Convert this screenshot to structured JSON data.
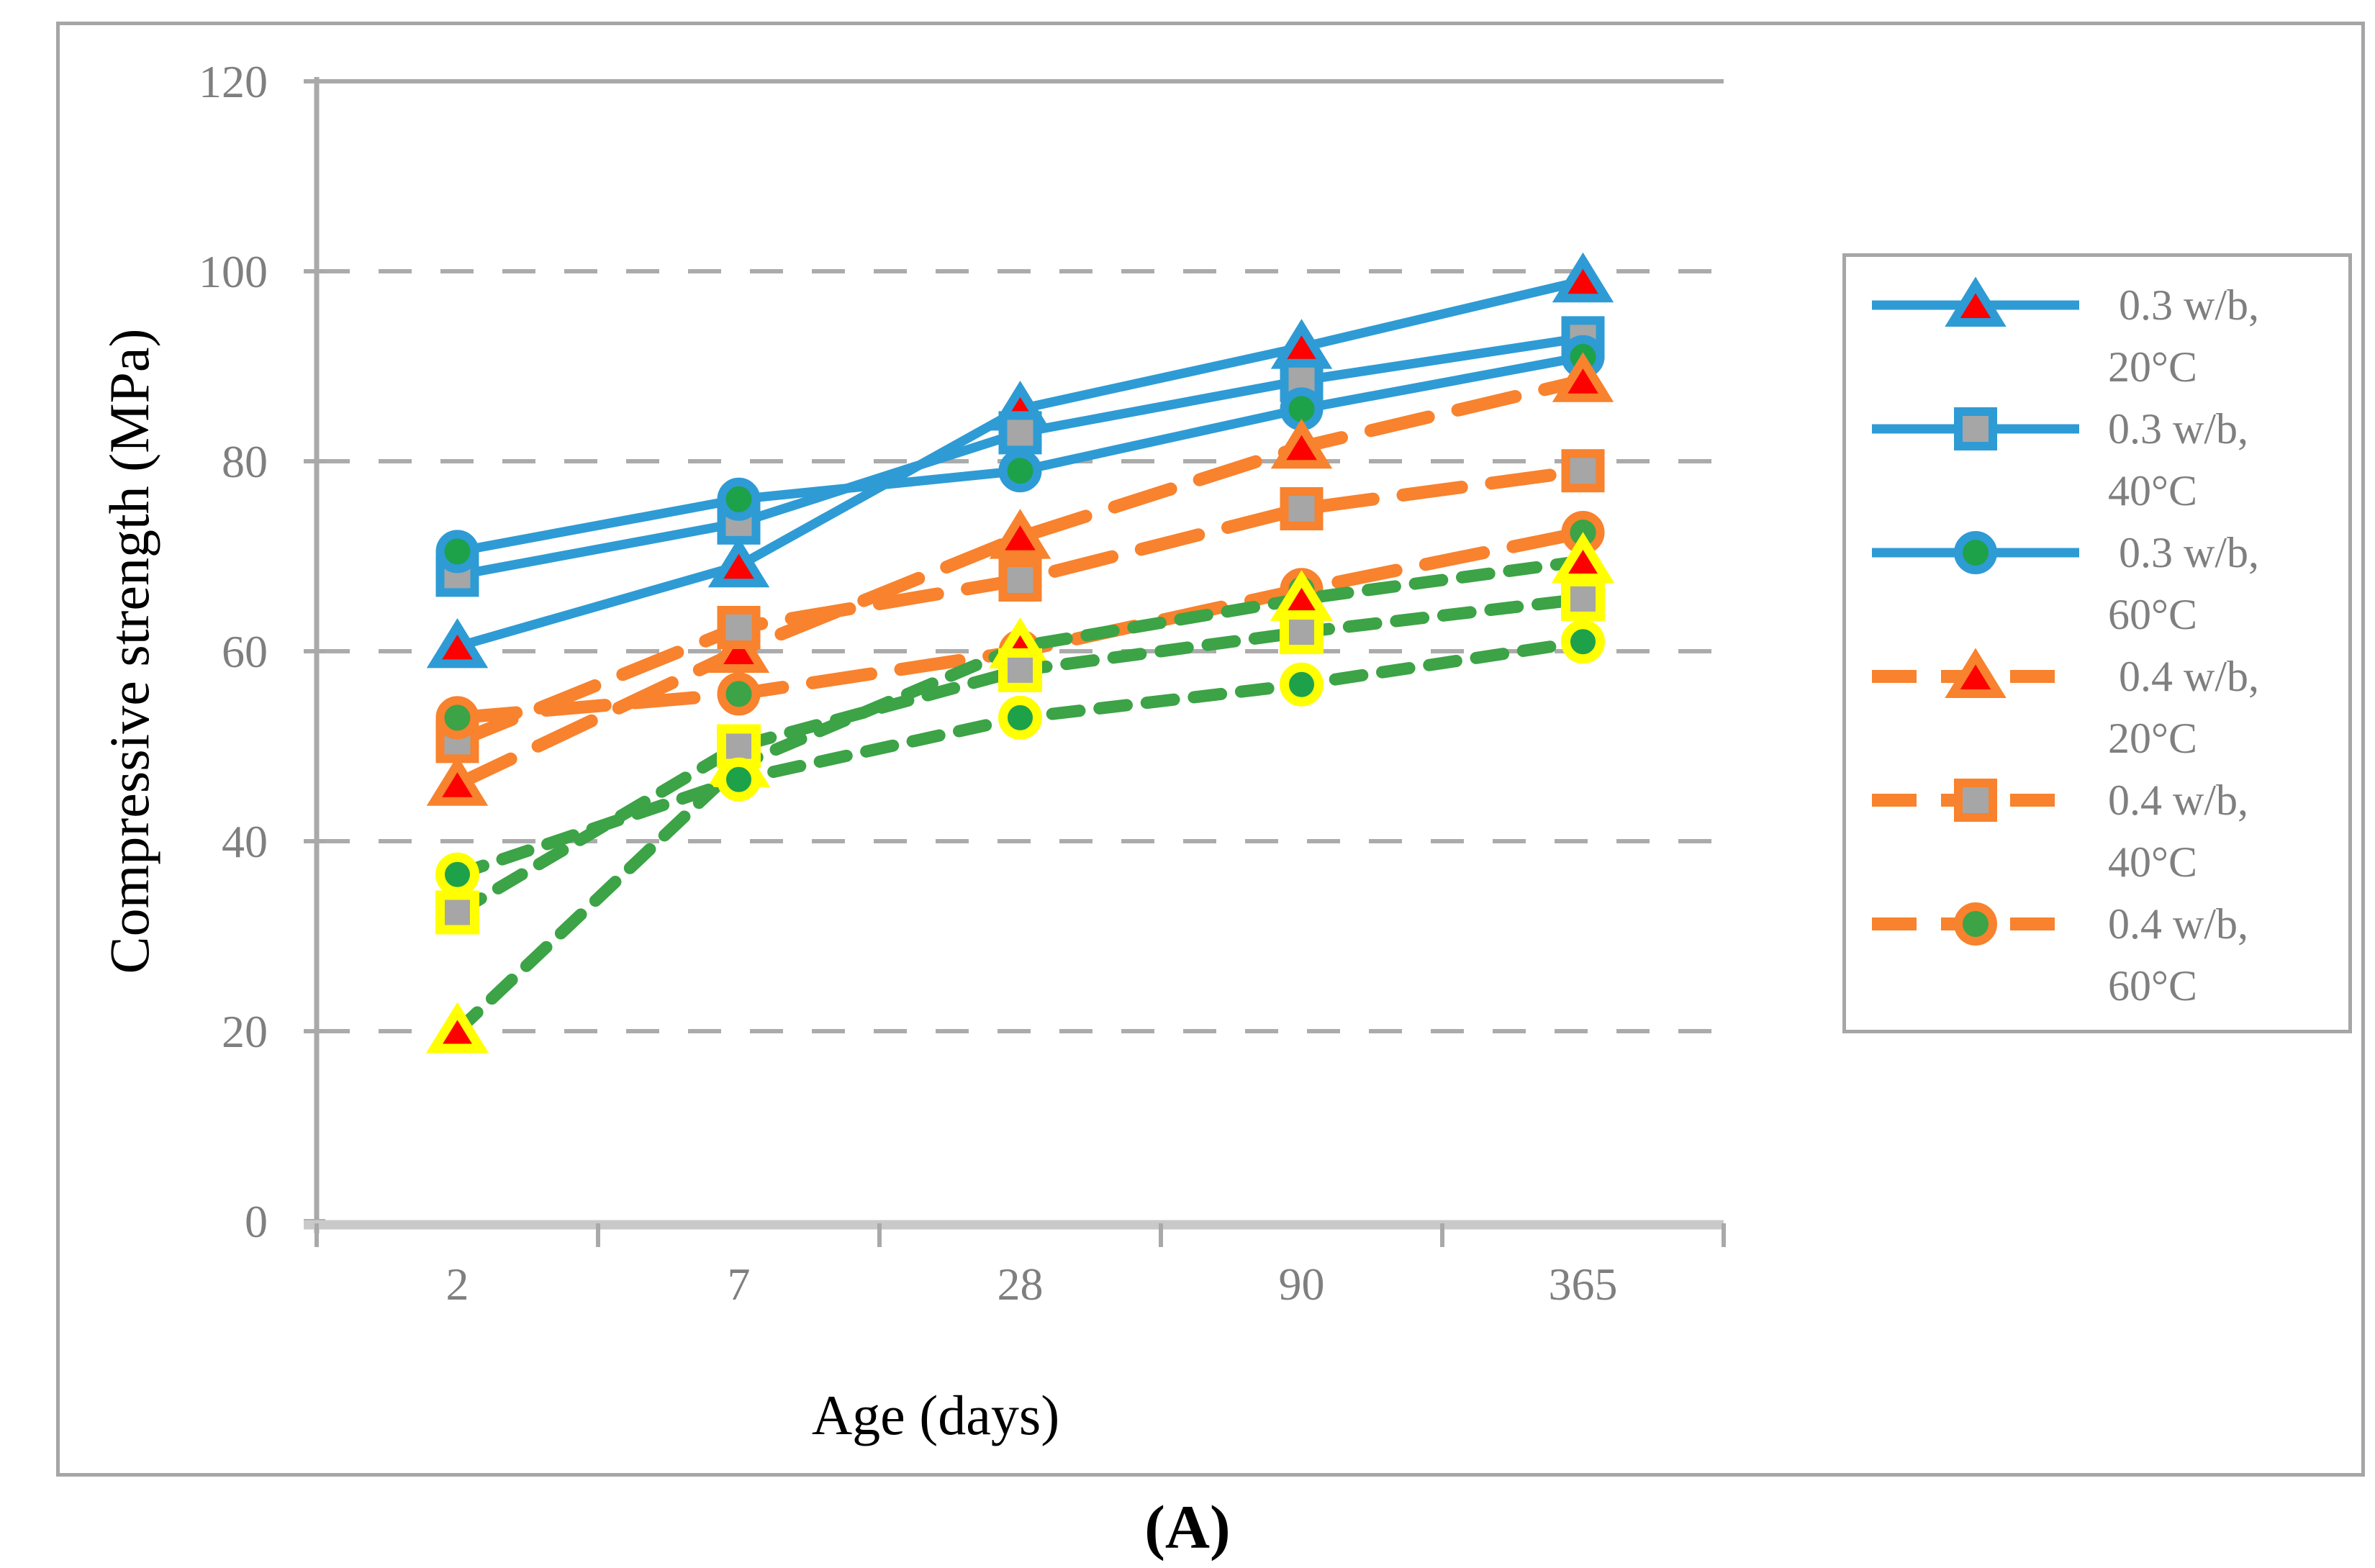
{
  "figure": {
    "caption": "(A)",
    "border_color": "#A6A6A6",
    "background": "#FFFFFF"
  },
  "y_axis": {
    "title": "Compressive strength (MPa)",
    "tick_labels": [
      "0",
      "20",
      "40",
      "60",
      "80",
      "100",
      "120"
    ],
    "min": 0,
    "max": 120,
    "tick_step": 20,
    "tick_text_color": "#7F7F7F"
  },
  "x_axis": {
    "title": "Age (days)",
    "categories": [
      "2",
      "7",
      "28",
      "90",
      "365"
    ],
    "tick_text_color": "#7F7F7F"
  },
  "legend": {
    "text_color": "#7F7F7F",
    "entries": [
      {
        "label": " 0.3 w/b,\n20°C",
        "series_index": 0
      },
      {
        "label": "0.3 w/b,\n40°C",
        "series_index": 1
      },
      {
        "label": " 0.3 w/b,\n60°C",
        "series_index": 2
      },
      {
        "label": " 0.4 w/b,\n20°C",
        "series_index": 3
      },
      {
        "label": "0.4 w/b,\n40°C",
        "series_index": 4
      },
      {
        "label": "0.4 w/b,\n60°C",
        "series_index": 5
      }
    ]
  },
  "chart_data": {
    "type": "line",
    "title": "",
    "xlabel": "Age (days)",
    "ylabel": "Compressive strength (MPa)",
    "x_categories": [
      "2",
      "7",
      "28",
      "90",
      "365"
    ],
    "ylim": [
      0,
      120
    ],
    "grid": {
      "horizontal_dashed_at": [
        20,
        40,
        60,
        80,
        100
      ],
      "color": "#ABABAB",
      "top_solid_at": 120
    },
    "legend_position": "right",
    "series": [
      {
        "id": "s-03wb-20c",
        "name": "0.3 w/b, 20°C",
        "in_legend": true,
        "line_color": "#2E9BD5",
        "dash": "solid",
        "marker": "triangle",
        "marker_fill": "#FE0000",
        "marker_outline": "#2E9BD5",
        "values": [
          60.5,
          69,
          85.5,
          92,
          99
        ]
      },
      {
        "id": "s-03wb-40c",
        "name": "0.3 w/b, 40°C",
        "in_legend": true,
        "line_color": "#2E9BD5",
        "dash": "solid",
        "marker": "square",
        "marker_fill": "#A6A6A6",
        "marker_outline": "#2E9BD5",
        "values": [
          68,
          73.5,
          83,
          88.5,
          93
        ]
      },
      {
        "id": "s-03wb-60c",
        "name": "0.3 w/b, 60°C",
        "in_legend": true,
        "line_color": "#2E9BD5",
        "dash": "solid",
        "marker": "circle",
        "marker_fill": "#1DA24A",
        "marker_outline": "#2E9BD5",
        "values": [
          70.5,
          76,
          79,
          85.5,
          91
        ]
      },
      {
        "id": "s-04wb-20c",
        "name": "0.4 w/b, 20°C",
        "in_legend": true,
        "line_color": "#F8822D",
        "dash": "long-dash",
        "marker": "triangle",
        "marker_fill": "#FE0000",
        "marker_outline": "#F8822D",
        "values": [
          46,
          60,
          72,
          81.5,
          88.5
        ]
      },
      {
        "id": "s-04wb-40c",
        "name": "0.4 w/b, 40°C",
        "in_legend": true,
        "line_color": "#F8822D",
        "dash": "long-dash",
        "marker": "square",
        "marker_fill": "#A6A6A6",
        "marker_outline": "#F8822D",
        "values": [
          50.5,
          62.5,
          67.5,
          75,
          79
        ]
      },
      {
        "id": "s-04wb-60c",
        "name": "0.4 w/b, 60°C",
        "in_legend": true,
        "line_color": "#F8822D",
        "dash": "long-dash",
        "marker": "circle",
        "marker_fill": "#3CA346",
        "marker_outline": "#F8822D",
        "values": [
          53,
          55.5,
          60,
          66.5,
          72.5
        ]
      },
      {
        "id": "s-green-tri",
        "name": "green dashed series, triangle markers (no legend entry)",
        "in_legend": false,
        "line_color": "#3CA346",
        "dash": "short-dash",
        "marker": "triangle",
        "marker_fill": "#FE0000",
        "marker_outline": "#FFFF00",
        "values": [
          20,
          48,
          60.5,
          65.5,
          69.5
        ]
      },
      {
        "id": "s-green-sq",
        "name": "green dashed series, square markers (no legend entry)",
        "in_legend": false,
        "line_color": "#3CA346",
        "dash": "short-dash",
        "marker": "square",
        "marker_fill": "#A6A6A6",
        "marker_outline": "#FFFF00",
        "values": [
          32.5,
          50,
          58,
          62,
          65.5
        ]
      },
      {
        "id": "s-green-circ",
        "name": "green dashed series, circle markers (no legend entry)",
        "in_legend": false,
        "line_color": "#3CA346",
        "dash": "short-dash",
        "marker": "circle",
        "marker_fill": "#1DA24A",
        "marker_outline": "#FFFF00",
        "values": [
          36.5,
          46.5,
          53,
          56.5,
          61
        ]
      }
    ]
  },
  "colors": {
    "blue": "#2E9BD5",
    "orange": "#F8822D",
    "green": "#3CA346",
    "marker_red": "#FE0000",
    "marker_gray": "#A6A6A6",
    "marker_green": "#1DA24A",
    "marker_yellow_rim": "#FFFF00",
    "gridline": "#ABABAB",
    "axis_line": "#A9A9A9",
    "axis_bottom_line": "#C9C9C9",
    "tick_text": "#7F7F7F",
    "frame_border": "#A6A6A6"
  }
}
